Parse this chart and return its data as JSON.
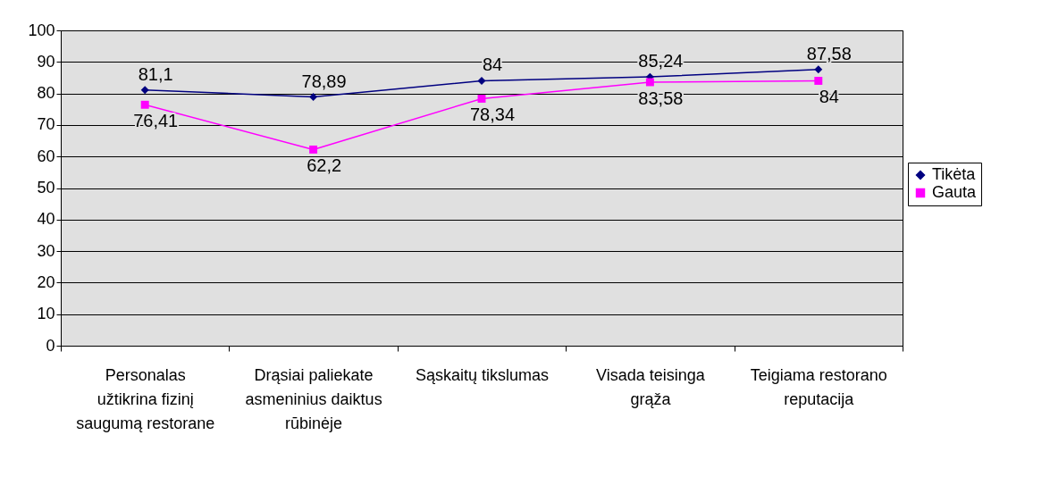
{
  "chart_data": {
    "type": "line",
    "categories": [
      "Personalas užtikrina fizinį saugumą restorane",
      "Drąsiai paliekate asmeninius daiktus rūbinėje",
      "Sąskaitų tikslumas",
      "Visada teisinga grąža",
      "Teigiama restorano reputacija"
    ],
    "series": [
      {
        "name": "Tikėta",
        "color": "#000080",
        "marker": "diamond",
        "values": [
          81.1,
          78.89,
          84,
          85.24,
          87.58
        ],
        "value_labels": [
          "81,1",
          "78,89",
          "84",
          "85,24",
          "87,58"
        ]
      },
      {
        "name": "Gauta",
        "color": "#ff00ff",
        "marker": "square",
        "values": [
          76.41,
          62.2,
          78.34,
          83.58,
          84
        ],
        "value_labels": [
          "76,41",
          "62,2",
          "78,34",
          "83,58",
          "84"
        ]
      }
    ],
    "ylim": [
      0,
      100
    ],
    "yticks": [
      0,
      10,
      20,
      30,
      40,
      50,
      60,
      70,
      80,
      90,
      100
    ],
    "grid": "y",
    "legend": "right"
  }
}
